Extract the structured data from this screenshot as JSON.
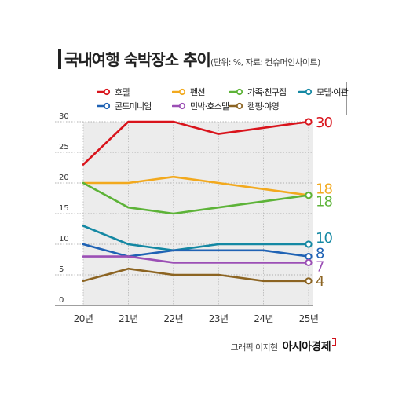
{
  "chart_data": {
    "type": "line",
    "title": "국내여행 숙박장소 추이",
    "subtitle": "(단위: %, 자료: 컨슈머인사이트)",
    "categories": [
      "20년",
      "21년",
      "22년",
      "23년",
      "24년",
      "25년"
    ],
    "ylim": [
      0,
      30
    ],
    "yticks": [
      0,
      5,
      10,
      15,
      20,
      25,
      30
    ],
    "grid": true,
    "legend_position": "top",
    "series": [
      {
        "name": "호텔",
        "color": "#d9141c",
        "values": [
          23,
          30,
          30,
          28,
          29,
          30
        ],
        "end_label": "30"
      },
      {
        "name": "펜션",
        "color": "#f2a91e",
        "values": [
          20,
          20,
          21,
          20,
          19,
          18
        ],
        "end_label": "18"
      },
      {
        "name": "가족·친구집",
        "color": "#5db338",
        "values": [
          20,
          16,
          15,
          16,
          17,
          18
        ],
        "end_label": "18"
      },
      {
        "name": "모텔·여관",
        "color": "#1488a3",
        "values": [
          13,
          10,
          9,
          10,
          10,
          10
        ],
        "end_label": "10"
      },
      {
        "name": "콘도미니엄",
        "color": "#1f62b4",
        "values": [
          10,
          8,
          9,
          9,
          9,
          8
        ],
        "end_label": "8"
      },
      {
        "name": "민박·호스텔",
        "color": "#9b4fb5",
        "values": [
          8,
          8,
          7,
          7,
          7,
          7
        ],
        "end_label": "7"
      },
      {
        "name": "캠핑·야영",
        "color": "#8c6422",
        "values": [
          4,
          6,
          5,
          5,
          4,
          4
        ],
        "end_label": "4"
      }
    ]
  },
  "credit": {
    "text": "그래픽 이지현",
    "brand": "아시아경제"
  }
}
